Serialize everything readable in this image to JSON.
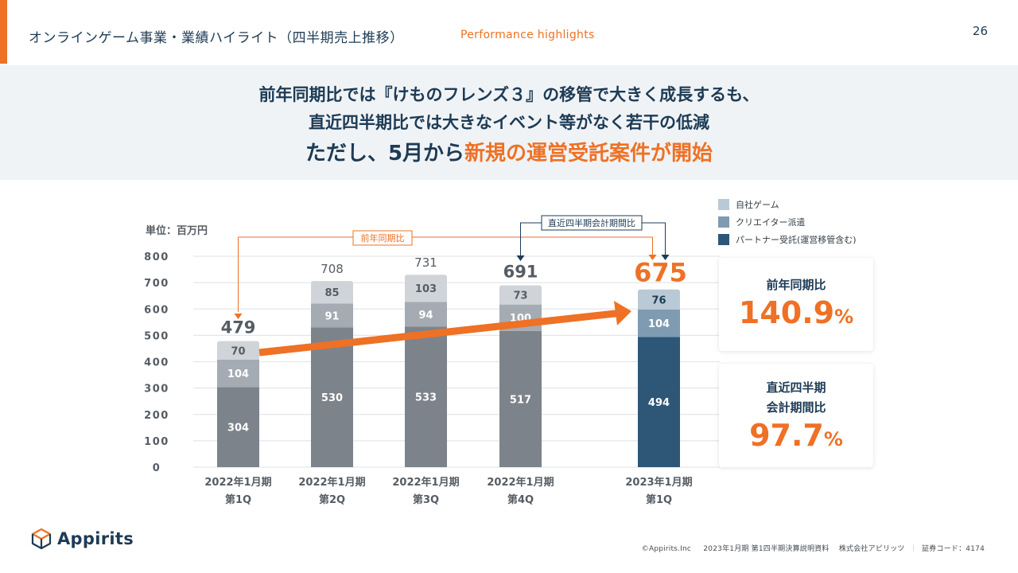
{
  "header": {
    "title": "オンラインゲーム事業・業績ハイライト（四半期売上推移）",
    "subtitle": "Performance highlights",
    "page_number": "26"
  },
  "banner": {
    "line1": "前年同期比では『けものフレンズ３』の移管で大きく成長するも、",
    "line2": "直近四半期比では大きなイベント等がなく若干の低減",
    "line3_prefix": "ただし、5月から",
    "line3_highlight": "新規の運営受託案件が開始"
  },
  "colors": {
    "accent": "#ee7125",
    "navy": "#1d3b55",
    "own_game": "#b9c9d6",
    "creator": "#7f9bb1",
    "partner": "#2d5677",
    "past_top": "#d0d4d8",
    "past_mid": "#a4abb2",
    "past_bottom": "#7d838b"
  },
  "chart_data": {
    "type": "bar",
    "stacked": true,
    "unit_label": "単位：百万円",
    "categories": [
      [
        "2022年1月期",
        "第1Q"
      ],
      [
        "2022年1月期",
        "第2Q"
      ],
      [
        "2022年1月期",
        "第3Q"
      ],
      [
        "2022年1月期",
        "第4Q"
      ],
      [
        "2023年1月期",
        "第1Q"
      ]
    ],
    "series": [
      {
        "name": "パートナー受託(運営移管含む)",
        "values": [
          304,
          530,
          533,
          517,
          494
        ]
      },
      {
        "name": "クリエイター派遣",
        "values": [
          104,
          91,
          94,
          100,
          104
        ]
      },
      {
        "name": "自社ゲーム",
        "values": [
          70,
          85,
          103,
          73,
          76
        ]
      }
    ],
    "totals": [
      479,
      708,
      731,
      691,
      675
    ],
    "ylim": [
      0,
      800
    ],
    "yticks": [
      0,
      100,
      200,
      300,
      400,
      500,
      600,
      700,
      800
    ],
    "grid": true,
    "legend": [
      "自社ゲーム",
      "クリエイター派遣",
      "パートナー受託(運営移管含む)"
    ],
    "legend_position": "top-right",
    "annotations": {
      "yoy_label": "前年同期比",
      "qoq_label": "直近四半期会計期間比"
    }
  },
  "cards": [
    {
      "label_lines": [
        "前年同期比"
      ],
      "value": "140.9",
      "unit": "%"
    },
    {
      "label_lines": [
        "直近四半期",
        "会計期間比"
      ],
      "value": "97.7",
      "unit": "%"
    }
  ],
  "footer": {
    "company_logo_text": "Appirits",
    "copyright": "©Appirits.Inc",
    "document": "2023年1月期 第1四半期決算説明資料",
    "company": "株式会社アピリッツ",
    "separator": "｜",
    "securities_code": "証券コード：4174"
  }
}
